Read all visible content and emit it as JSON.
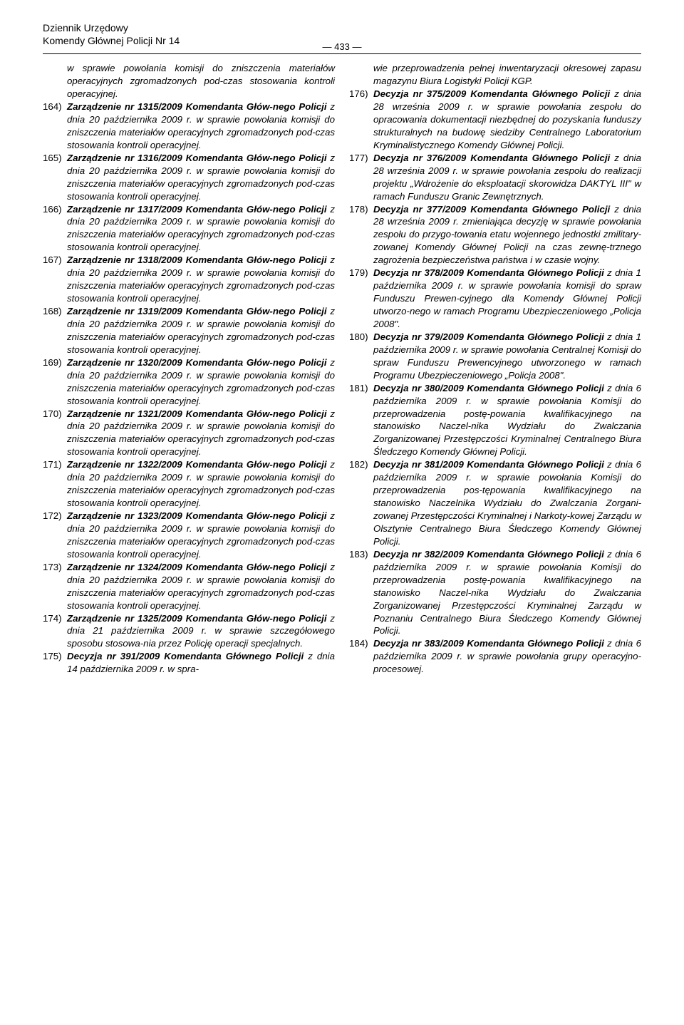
{
  "header": {
    "line1": "Dziennik Urzędowy",
    "line2": "Komendy Głównej Policji Nr 14",
    "pageNumber": "— 433 —"
  },
  "left": {
    "introHang": "w sprawie powołania komisji do zniszczenia materiałów operacyjnych zgromadzonych pod-czas stosowania kontroli operacyjnej.",
    "items": [
      {
        "n": "164)",
        "lead": "Zarządzenie nr 1315/2009 Komendanta Głów-nego Policji",
        "rest": " z dnia 20 października 2009 r. w sprawie powołania komisji do zniszczenia materiałów operacyjnych zgromadzonych pod-czas stosowania kontroli operacyjnej."
      },
      {
        "n": "165)",
        "lead": "Zarządzenie nr 1316/2009 Komendanta Głów-nego Policji",
        "rest": " z dnia 20 października 2009 r. w sprawie powołania komisji do zniszczenia materiałów operacyjnych zgromadzonych pod-czas stosowania kontroli operacyjnej."
      },
      {
        "n": "166)",
        "lead": "Zarządzenie nr 1317/2009 Komendanta Głów-nego Policji",
        "rest": " z dnia 20 października 2009 r. w sprawie powołania komisji do zniszczenia materiałów operacyjnych zgromadzonych pod-czas stosowania kontroli operacyjnej."
      },
      {
        "n": "167)",
        "lead": "Zarządzenie nr 1318/2009 Komendanta Głów-nego Policji",
        "rest": " z dnia 20 października 2009 r. w sprawie powołania komisji do zniszczenia materiałów operacyjnych zgromadzonych pod-czas stosowania kontroli operacyjnej."
      },
      {
        "n": "168)",
        "lead": "Zarządzenie nr 1319/2009 Komendanta Głów-nego Policji",
        "rest": " z dnia 20 października 2009 r. w sprawie powołania komisji do zniszczenia materiałów operacyjnych zgromadzonych pod-czas stosowania kontroli operacyjnej."
      },
      {
        "n": "169)",
        "lead": "Zarządzenie nr 1320/2009 Komendanta Głów-nego Policji",
        "rest": " z dnia 20 października 2009 r. w sprawie powołania komisji do zniszczenia materiałów operacyjnych zgromadzonych pod-czas stosowania kontroli operacyjnej."
      },
      {
        "n": "170)",
        "lead": "Zarządzenie nr 1321/2009 Komendanta Głów-nego Policji",
        "rest": " z dnia 20 października 2009 r. w sprawie powołania komisji do zniszczenia materiałów operacyjnych zgromadzonych pod-czas stosowania kontroli operacyjnej."
      },
      {
        "n": "171)",
        "lead": "Zarządzenie nr 1322/2009 Komendanta Głów-nego Policji",
        "rest": " z dnia 20 października 2009 r. w sprawie powołania komisji do zniszczenia materiałów operacyjnych zgromadzonych pod-czas stosowania kontroli operacyjnej."
      },
      {
        "n": "172)",
        "lead": "Zarządzenie nr 1323/2009 Komendanta Głów-nego Policji",
        "rest": " z dnia 20 października 2009 r. w sprawie powołania komisji do zniszczenia materiałów operacyjnych zgromadzonych pod-czas stosowania kontroli operacyjnej."
      },
      {
        "n": "173)",
        "lead": "Zarządzenie nr 1324/2009 Komendanta Głów-nego Policji",
        "rest": " z dnia 20 października 2009 r. w sprawie powołania komisji do zniszczenia materiałów operacyjnych zgromadzonych pod-czas stosowania kontroli operacyjnej."
      },
      {
        "n": "174)",
        "lead": "Zarządzenie nr 1325/2009 Komendanta Głów-nego Policji",
        "rest": " z dnia 21 października 2009 r. w sprawie szczegółowego sposobu stosowa-nia przez Policję operacji specjalnych."
      },
      {
        "n": "175)",
        "lead": "Decyzja nr 391/2009 Komendanta Głównego Policji",
        "rest": " z dnia 14 października 2009 r. w spra-"
      }
    ]
  },
  "right": {
    "introHang": "wie przeprowadzenia pełnej inwentaryzacji okresowej zapasu magazynu Biura Logistyki Policji KGP.",
    "items": [
      {
        "n": "176)",
        "lead": "Decyzja nr 375/2009 Komendanta Głównego Policji",
        "rest": " z dnia 28 września 2009 r. w sprawie powołania zespołu do opracowania dokumentacji niezbędnej do pozyskania funduszy strukturalnych na budowę siedziby Centralnego Laboratorium Kryminalistycznego Komendy Głównej Policji."
      },
      {
        "n": "177)",
        "lead": "Decyzja nr 376/2009 Komendanta Głównego Policji",
        "rest": " z dnia 28 września 2009 r. w sprawie powołania zespołu do realizacji projektu „Wdrożenie do eksploatacji skorowidza DAKTYL III\" w ramach Funduszu Granic Zewnętrznych."
      },
      {
        "n": "178)",
        "lead": "Decyzja nr 377/2009 Komendanta Głównego Policji",
        "rest": " z dnia 28 września 2009 r. zmieniająca decyzję w sprawie powołania zespołu do przygo-towania etatu wojennego jednostki zmilitary-zowanej Komendy Głównej Policji na czas zewnę-trznego zagrożenia bezpieczeństwa państwa i w czasie wojny."
      },
      {
        "n": "179)",
        "lead": "Decyzja nr 378/2009 Komendanta Głównego Policji",
        "rest": " z dnia 1 października 2009 r. w sprawie powołania komisji do spraw Funduszu Prewen-cyjnego dla Komendy Głównej Policji utworzo-nego w ramach Programu Ubezpieczeniowego „Policja 2008\"."
      },
      {
        "n": "180)",
        "lead": "Decyzja nr 379/2009 Komendanta Głównego Policji",
        "rest": " z dnia 1 października 2009 r. w sprawie powołania Centralnej Komisji do spraw Funduszu Prewencyjnego utworzonego w ramach Programu Ubezpieczeniowego „Policja 2008\"."
      },
      {
        "n": "181)",
        "lead": "Decyzja nr 380/2009 Komendanta Głównego Policji",
        "rest": " z dnia 6 października 2009 r. w sprawie powołania Komisji do przeprowadzenia postę-powania kwalifikacyjnego na stanowisko Naczel-nika Wydziału do Zwalczania Zorganizowanej Przestępczości Kryminalnej Centralnego Biura Śledczego Komendy Głównej Policji."
      },
      {
        "n": "182)",
        "lead": "Decyzja nr 381/2009 Komendanta Głównego Policji",
        "rest": " z dnia 6 października 2009 r. w sprawie powołania Komisji do przeprowadzenia pos-tępowania kwalifikacyjnego na stanowisko Naczelnika Wydziału do Zwalczania Zorgani-zowanej Przestępczości Kryminalnej i Narkoty-kowej Zarządu w Olsztynie Centralnego Biura Śledczego Komendy Głównej Policji."
      },
      {
        "n": "183)",
        "lead": "Decyzja nr 382/2009 Komendanta Głównego Policji",
        "rest": " z dnia 6 października 2009 r. w sprawie powołania Komisji do przeprowadzenia postę-powania kwalifikacyjnego na stanowisko Naczel-nika Wydziału do Zwalczania Zorganizowanej Przestępczości Kryminalnej Zarządu w Poznaniu Centralnego Biura Śledczego Komendy Głównej Policji."
      },
      {
        "n": "184)",
        "lead": "Decyzja nr 383/2009 Komendanta Głównego Policji",
        "rest": " z dnia 6 października 2009 r. w sprawie powołania grupy operacyjno-procesowej."
      }
    ]
  }
}
